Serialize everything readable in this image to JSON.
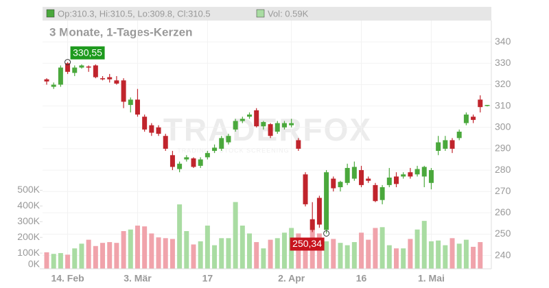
{
  "chart_data": {
    "type": "candlestick",
    "header": {
      "ohlc_text": "Op:310.3, Hi:310.5, Lo:309.8, Cl:310.5",
      "volume_text": "Vol: 0.59K"
    },
    "subtitle": "3 Monate, 1-Tages-Kerzen",
    "watermark": "TRADERFOX",
    "watermark_tagline": "TRADING & STOCK SCREENING",
    "categories": [
      null,
      null,
      null,
      "14. Feb",
      null,
      null,
      null,
      null,
      null,
      null,
      null,
      null,
      null,
      "3. Mär",
      null,
      null,
      null,
      null,
      null,
      null,
      null,
      null,
      null,
      "17",
      null,
      null,
      null,
      null,
      null,
      null,
      null,
      null,
      null,
      null,
      null,
      "2. Apr",
      null,
      null,
      null,
      null,
      null,
      null,
      null,
      null,
      null,
      "16",
      null,
      null,
      null,
      null,
      null,
      null,
      null,
      null,
      null,
      "1. Mai",
      null,
      null,
      null,
      null,
      null,
      null,
      null,
      null
    ],
    "open": [
      322.5,
      319,
      320,
      330,
      325.5,
      328,
      328.5,
      329,
      323,
      323.5,
      322,
      322,
      310.5,
      313,
      305,
      301,
      300,
      296,
      287,
      280.5,
      285,
      285.5,
      282,
      286,
      289,
      290,
      293,
      299,
      303,
      305,
      308,
      300.5,
      301.5,
      298,
      300,
      301,
      294,
      278,
      257,
      267,
      252,
      276,
      272,
      274,
      276,
      280,
      276,
      273,
      266,
      273,
      277,
      277,
      279,
      278,
      277,
      274,
      289,
      290,
      294,
      295,
      302,
      305,
      313,
      310.3
    ],
    "high": [
      323,
      321,
      329,
      330.55,
      329,
      329.5,
      329,
      329.5,
      324,
      325,
      324,
      323,
      314,
      318,
      306,
      302,
      301,
      297,
      289,
      284,
      287,
      286,
      286,
      289,
      292,
      296,
      297,
      304,
      305,
      307,
      309,
      303,
      302,
      303,
      303,
      304,
      295,
      279,
      265,
      268,
      280,
      277,
      275,
      283,
      284,
      282,
      277,
      274,
      273,
      281,
      279,
      279,
      281,
      282,
      282,
      281,
      296,
      296,
      295,
      299,
      307,
      306,
      315,
      310.5
    ],
    "low": [
      320,
      318,
      319,
      325,
      324,
      327.5,
      326,
      323,
      322,
      321,
      320,
      309,
      307,
      305,
      298,
      296,
      296,
      289,
      280,
      279,
      284,
      281,
      281,
      285,
      288,
      289,
      292,
      298,
      302,
      304,
      300,
      299,
      295,
      297,
      299,
      300,
      289,
      263,
      251,
      253,
      250.34,
      270,
      270,
      273,
      275,
      272,
      274,
      265,
      264,
      272,
      272,
      276,
      276,
      277,
      272,
      271,
      287,
      289,
      288,
      294,
      301,
      302,
      307,
      309.8
    ],
    "close": [
      321.5,
      320,
      328,
      326,
      328,
      329,
      328,
      323.5,
      322.5,
      322.5,
      320.5,
      312,
      313,
      306,
      299,
      297.5,
      297,
      290,
      281.5,
      283,
      286,
      281.5,
      285,
      288,
      290.5,
      295,
      296,
      303,
      304,
      306,
      300.5,
      302.5,
      296,
      302,
      302,
      302,
      290,
      264,
      252,
      254.5,
      279,
      271.5,
      274.5,
      281,
      281.5,
      273,
      275,
      265.5,
      272,
      276.5,
      273.5,
      278,
      277,
      280.5,
      281.5,
      280,
      293,
      294,
      290,
      298,
      306,
      303.5,
      309.5,
      310.5
    ],
    "volume": [
      105,
      95,
      100,
      90,
      130,
      160,
      185,
      145,
      165,
      170,
      165,
      240,
      250,
      275,
      270,
      225,
      200,
      195,
      190,
      410,
      240,
      155,
      175,
      275,
      150,
      195,
      195,
      425,
      275,
      225,
      170,
      130,
      185,
      195,
      230,
      260,
      225,
      165,
      310,
      225,
      175,
      190,
      165,
      150,
      170,
      230,
      185,
      260,
      265,
      150,
      130,
      130,
      190,
      250,
      305,
      175,
      180,
      150,
      195,
      160,
      185,
      140,
      170,
      0.59
    ],
    "up_color": "#4aa83c",
    "down_color": "#c0242c",
    "volume_up_color": "#a9dca2",
    "volume_down_color": "#f0a3ab",
    "ylim": [
      233.8,
      350
    ],
    "yticks": [
      240,
      250,
      260,
      270,
      280,
      290,
      300,
      310,
      320,
      330,
      340
    ],
    "y2lim": [
      0,
      1580
    ],
    "y2ticks": [
      {
        "value": 0,
        "label": "0K"
      },
      {
        "value": 100,
        "label": "100K"
      },
      {
        "value": 200,
        "label": "200K"
      },
      {
        "value": 300,
        "label": "300K"
      },
      {
        "value": 400,
        "label": "400K"
      },
      {
        "value": 500,
        "label": "500K"
      }
    ],
    "annotations": [
      {
        "label": "330,55",
        "value": 330.55,
        "index": 3,
        "color": "#1e9a1e"
      },
      {
        "label": "250,34",
        "value": 250.34,
        "index": 40,
        "color": "#c8141e"
      }
    ],
    "grid": true
  }
}
